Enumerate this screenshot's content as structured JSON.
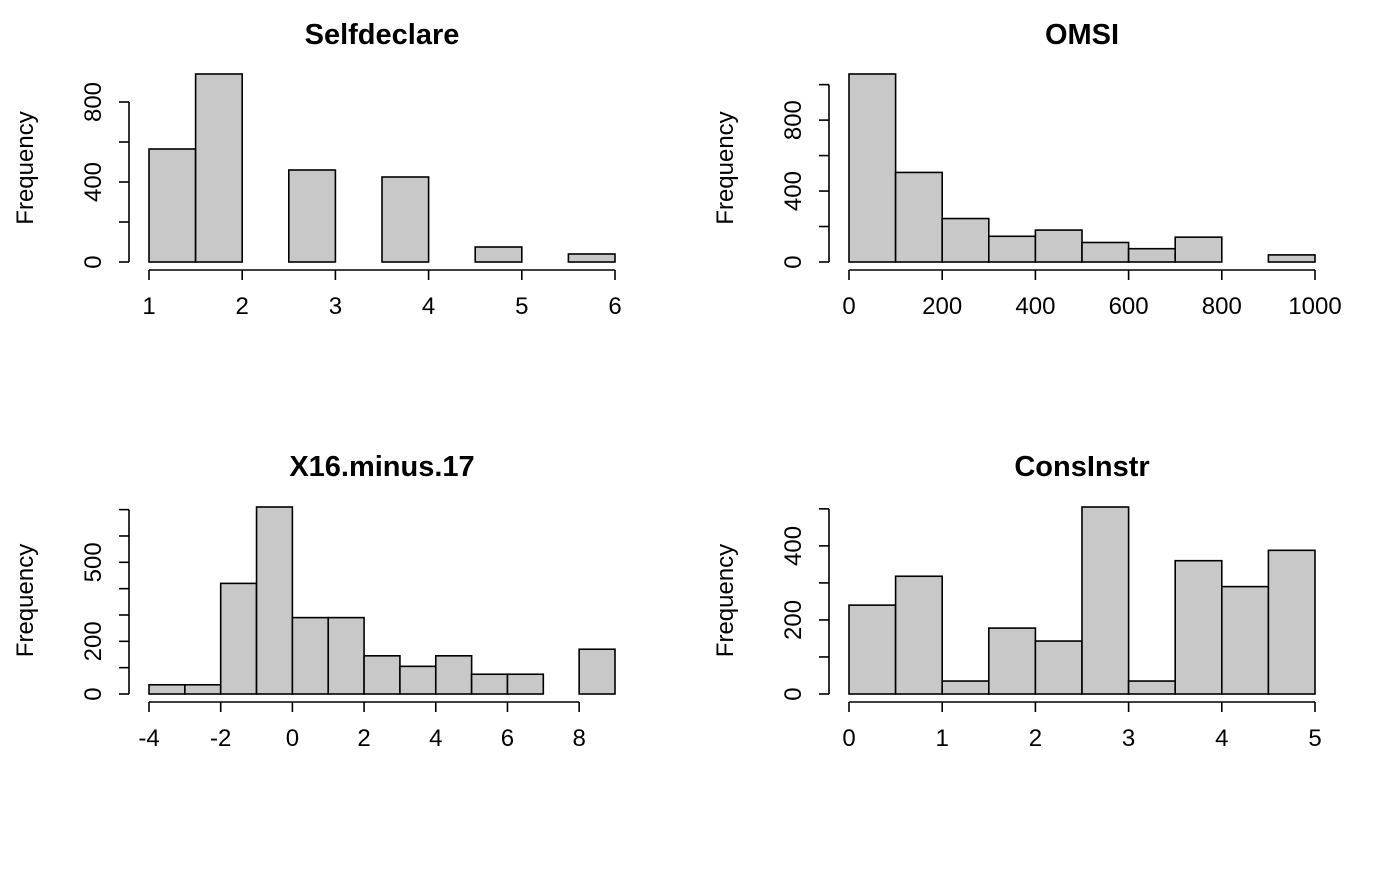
{
  "chart_data": [
    {
      "type": "bar",
      "title": "Selfdeclare",
      "xlabel": "",
      "ylabel": "Frequency",
      "bins": [
        {
          "x0": 1.0,
          "x1": 1.5,
          "count": 565
        },
        {
          "x0": 1.5,
          "x1": 2.0,
          "count": 940
        },
        {
          "x0": 2.0,
          "x1": 2.5,
          "count": 0
        },
        {
          "x0": 2.5,
          "x1": 3.0,
          "count": 460
        },
        {
          "x0": 3.0,
          "x1": 3.5,
          "count": 0
        },
        {
          "x0": 3.5,
          "x1": 4.0,
          "count": 425
        },
        {
          "x0": 4.0,
          "x1": 4.5,
          "count": 0
        },
        {
          "x0": 4.5,
          "x1": 5.0,
          "count": 75
        },
        {
          "x0": 5.0,
          "x1": 5.5,
          "count": 0
        },
        {
          "x0": 5.5,
          "x1": 6.0,
          "count": 40
        }
      ],
      "xticks": [
        1,
        2,
        3,
        4,
        5,
        6
      ],
      "yticks": [
        0,
        200,
        400,
        600,
        800
      ],
      "ytick_labels": [
        0,
        400,
        800
      ],
      "xlim": [
        1,
        6
      ],
      "ylim": [
        0,
        940
      ],
      "grid": false
    },
    {
      "type": "bar",
      "title": "OMSI",
      "xlabel": "",
      "ylabel": "Frequency",
      "bins": [
        {
          "x0": 0,
          "x1": 100,
          "count": 1060
        },
        {
          "x0": 100,
          "x1": 200,
          "count": 505
        },
        {
          "x0": 200,
          "x1": 300,
          "count": 245
        },
        {
          "x0": 300,
          "x1": 400,
          "count": 145
        },
        {
          "x0": 400,
          "x1": 500,
          "count": 180
        },
        {
          "x0": 500,
          "x1": 600,
          "count": 110
        },
        {
          "x0": 600,
          "x1": 700,
          "count": 75
        },
        {
          "x0": 700,
          "x1": 800,
          "count": 140
        },
        {
          "x0": 800,
          "x1": 900,
          "count": 0
        },
        {
          "x0": 900,
          "x1": 1000,
          "count": 40
        }
      ],
      "xticks": [
        0,
        200,
        400,
        600,
        800,
        1000
      ],
      "yticks": [
        0,
        200,
        400,
        600,
        800,
        1000
      ],
      "ytick_labels": [
        0,
        400,
        800
      ],
      "xlim": [
        0,
        1000
      ],
      "ylim": [
        0,
        1060
      ],
      "grid": false
    },
    {
      "type": "bar",
      "title": "X16.minus.17",
      "xlabel": "",
      "ylabel": "Frequency",
      "bins": [
        {
          "x0": -4,
          "x1": -3,
          "count": 35
        },
        {
          "x0": -3,
          "x1": -2,
          "count": 35
        },
        {
          "x0": -2,
          "x1": -1,
          "count": 420
        },
        {
          "x0": -1,
          "x1": 0,
          "count": 710
        },
        {
          "x0": 0,
          "x1": 1,
          "count": 290
        },
        {
          "x0": 1,
          "x1": 2,
          "count": 290
        },
        {
          "x0": 2,
          "x1": 3,
          "count": 145
        },
        {
          "x0": 3,
          "x1": 4,
          "count": 105
        },
        {
          "x0": 4,
          "x1": 5,
          "count": 145
        },
        {
          "x0": 5,
          "x1": 6,
          "count": 75
        },
        {
          "x0": 6,
          "x1": 7,
          "count": 75
        },
        {
          "x0": 7,
          "x1": 8,
          "count": 0
        },
        {
          "x0": 8,
          "x1": 9,
          "count": 170
        }
      ],
      "xticks": [
        -4,
        -2,
        0,
        2,
        4,
        6,
        8
      ],
      "yticks": [
        0,
        100,
        200,
        300,
        400,
        500,
        600,
        700
      ],
      "ytick_labels": [
        0,
        200,
        500
      ],
      "xlim": [
        -4,
        9
      ],
      "ylim": [
        0,
        710
      ],
      "grid": false
    },
    {
      "type": "bar",
      "title": "ConsInstr",
      "xlabel": "",
      "ylabel": "Frequency",
      "bins": [
        {
          "x0": 0.0,
          "x1": 0.5,
          "count": 240
        },
        {
          "x0": 0.5,
          "x1": 1.0,
          "count": 318
        },
        {
          "x0": 1.0,
          "x1": 1.5,
          "count": 35
        },
        {
          "x0": 1.5,
          "x1": 2.0,
          "count": 178
        },
        {
          "x0": 2.0,
          "x1": 2.5,
          "count": 143
        },
        {
          "x0": 2.5,
          "x1": 3.0,
          "count": 505
        },
        {
          "x0": 3.0,
          "x1": 3.5,
          "count": 35
        },
        {
          "x0": 3.5,
          "x1": 4.0,
          "count": 360
        },
        {
          "x0": 4.0,
          "x1": 4.5,
          "count": 290
        },
        {
          "x0": 4.5,
          "x1": 5.0,
          "count": 388
        }
      ],
      "xticks": [
        0,
        1,
        2,
        3,
        4,
        5
      ],
      "yticks": [
        0,
        100,
        200,
        300,
        400,
        500
      ],
      "ytick_labels": [
        0,
        200,
        400
      ],
      "xlim": [
        0,
        5
      ],
      "ylim": [
        0,
        505
      ],
      "grid": false
    }
  ]
}
